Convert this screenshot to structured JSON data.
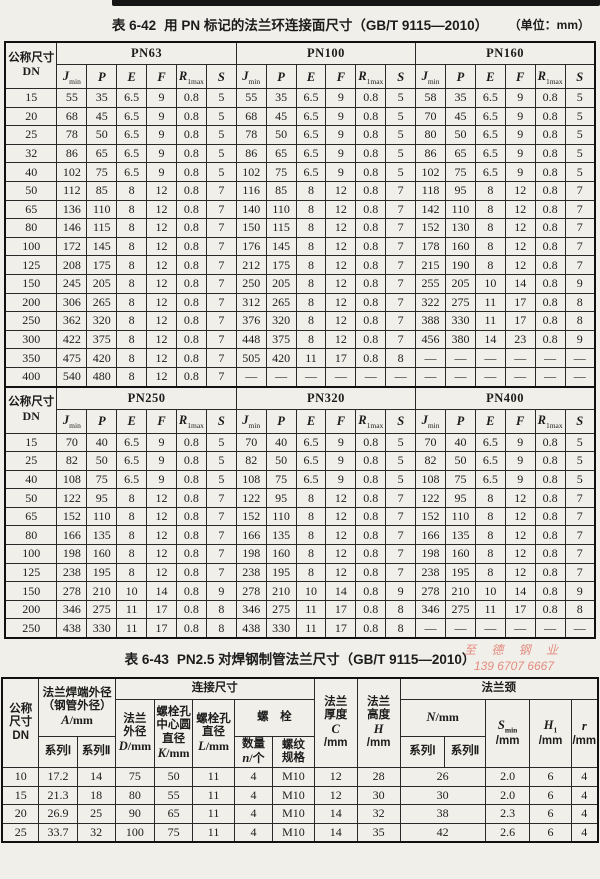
{
  "colors": {
    "paper": "#f1efe9",
    "ink": "#1c1c1c",
    "watermark": "#e07a6c"
  },
  "watermark": {
    "line1": "至 德 钢 业",
    "line2": "139 6707 6667"
  },
  "table42": {
    "label": "表 6-42",
    "title": "用 PN 标记的法兰环连接面尺寸（GB/T 9115—2010）",
    "unit": "（单位：mm）",
    "dn_line1": "公称尺寸",
    "dn_line2": "DN",
    "col_headers": [
      {
        "var": "J",
        "sub": "min"
      },
      {
        "var": "P"
      },
      {
        "var": "E"
      },
      {
        "var": "F"
      },
      {
        "var": "R",
        "sub": "1max"
      },
      {
        "var": "S"
      }
    ],
    "halves": [
      {
        "groups": [
          "PN63",
          "PN100",
          "PN160"
        ],
        "rows": [
          {
            "dn": "15",
            "cells": [
              [
                "55",
                "35",
                "6.5",
                "9",
                "0.8",
                "5"
              ],
              [
                "55",
                "35",
                "6.5",
                "9",
                "0.8",
                "5"
              ],
              [
                "58",
                "35",
                "6.5",
                "9",
                "0.8",
                "5"
              ]
            ]
          },
          {
            "dn": "20",
            "cells": [
              [
                "68",
                "45",
                "6.5",
                "9",
                "0.8",
                "5"
              ],
              [
                "68",
                "45",
                "6.5",
                "9",
                "0.8",
                "5"
              ],
              [
                "70",
                "45",
                "6.5",
                "9",
                "0.8",
                "5"
              ]
            ]
          },
          {
            "dn": "25",
            "cells": [
              [
                "78",
                "50",
                "6.5",
                "9",
                "0.8",
                "5"
              ],
              [
                "78",
                "50",
                "6.5",
                "9",
                "0.8",
                "5"
              ],
              [
                "80",
                "50",
                "6.5",
                "9",
                "0.8",
                "5"
              ]
            ]
          },
          {
            "dn": "32",
            "cells": [
              [
                "86",
                "65",
                "6.5",
                "9",
                "0.8",
                "5"
              ],
              [
                "86",
                "65",
                "6.5",
                "9",
                "0.8",
                "5"
              ],
              [
                "86",
                "65",
                "6.5",
                "9",
                "0.8",
                "5"
              ]
            ]
          },
          {
            "dn": "40",
            "cells": [
              [
                "102",
                "75",
                "6.5",
                "9",
                "0.8",
                "5"
              ],
              [
                "102",
                "75",
                "6.5",
                "9",
                "0.8",
                "5"
              ],
              [
                "102",
                "75",
                "6.5",
                "9",
                "0.8",
                "5"
              ]
            ]
          },
          {
            "dn": "50",
            "cells": [
              [
                "112",
                "85",
                "8",
                "12",
                "0.8",
                "7"
              ],
              [
                "116",
                "85",
                "8",
                "12",
                "0.8",
                "7"
              ],
              [
                "118",
                "95",
                "8",
                "12",
                "0.8",
                "7"
              ]
            ]
          },
          {
            "dn": "65",
            "cells": [
              [
                "136",
                "110",
                "8",
                "12",
                "0.8",
                "7"
              ],
              [
                "140",
                "110",
                "8",
                "12",
                "0.8",
                "7"
              ],
              [
                "142",
                "110",
                "8",
                "12",
                "0.8",
                "7"
              ]
            ]
          },
          {
            "dn": "80",
            "cells": [
              [
                "146",
                "115",
                "8",
                "12",
                "0.8",
                "7"
              ],
              [
                "150",
                "115",
                "8",
                "12",
                "0.8",
                "7"
              ],
              [
                "152",
                "130",
                "8",
                "12",
                "0.8",
                "7"
              ]
            ]
          },
          {
            "dn": "100",
            "cells": [
              [
                "172",
                "145",
                "8",
                "12",
                "0.8",
                "7"
              ],
              [
                "176",
                "145",
                "8",
                "12",
                "0.8",
                "7"
              ],
              [
                "178",
                "160",
                "8",
                "12",
                "0.8",
                "7"
              ]
            ]
          },
          {
            "dn": "125",
            "cells": [
              [
                "208",
                "175",
                "8",
                "12",
                "0.8",
                "7"
              ],
              [
                "212",
                "175",
                "8",
                "12",
                "0.8",
                "7"
              ],
              [
                "215",
                "190",
                "8",
                "12",
                "0.8",
                "7"
              ]
            ]
          },
          {
            "dn": "150",
            "cells": [
              [
                "245",
                "205",
                "8",
                "12",
                "0.8",
                "7"
              ],
              [
                "250",
                "205",
                "8",
                "12",
                "0.8",
                "7"
              ],
              [
                "255",
                "205",
                "10",
                "14",
                "0.8",
                "9"
              ]
            ]
          },
          {
            "dn": "200",
            "cells": [
              [
                "306",
                "265",
                "8",
                "12",
                "0.8",
                "7"
              ],
              [
                "312",
                "265",
                "8",
                "12",
                "0.8",
                "7"
              ],
              [
                "322",
                "275",
                "11",
                "17",
                "0.8",
                "8"
              ]
            ]
          },
          {
            "dn": "250",
            "cells": [
              [
                "362",
                "320",
                "8",
                "12",
                "0.8",
                "7"
              ],
              [
                "376",
                "320",
                "8",
                "12",
                "0.8",
                "7"
              ],
              [
                "388",
                "330",
                "11",
                "17",
                "0.8",
                "8"
              ]
            ]
          },
          {
            "dn": "300",
            "cells": [
              [
                "422",
                "375",
                "8",
                "12",
                "0.8",
                "7"
              ],
              [
                "448",
                "375",
                "8",
                "12",
                "0.8",
                "7"
              ],
              [
                "456",
                "380",
                "14",
                "23",
                "0.8",
                "9"
              ]
            ]
          },
          {
            "dn": "350",
            "cells": [
              [
                "475",
                "420",
                "8",
                "12",
                "0.8",
                "7"
              ],
              [
                "505",
                "420",
                "11",
                "17",
                "0.8",
                "8"
              ],
              [
                "—",
                "—",
                "—",
                "—",
                "—",
                "—"
              ]
            ]
          },
          {
            "dn": "400",
            "cells": [
              [
                "540",
                "480",
                "8",
                "12",
                "0.8",
                "7"
              ],
              [
                "—",
                "—",
                "—",
                "—",
                "—",
                "—"
              ],
              [
                "—",
                "—",
                "—",
                "—",
                "—",
                "—"
              ]
            ]
          }
        ]
      },
      {
        "groups": [
          "PN250",
          "PN320",
          "PN400"
        ],
        "rows": [
          {
            "dn": "15",
            "cells": [
              [
                "70",
                "40",
                "6.5",
                "9",
                "0.8",
                "5"
              ],
              [
                "70",
                "40",
                "6.5",
                "9",
                "0.8",
                "5"
              ],
              [
                "70",
                "40",
                "6.5",
                "9",
                "0.8",
                "5"
              ]
            ]
          },
          {
            "dn": "25",
            "cells": [
              [
                "82",
                "50",
                "6.5",
                "9",
                "0.8",
                "5"
              ],
              [
                "82",
                "50",
                "6.5",
                "9",
                "0.8",
                "5"
              ],
              [
                "82",
                "50",
                "6.5",
                "9",
                "0.8",
                "5"
              ]
            ]
          },
          {
            "dn": "40",
            "cells": [
              [
                "108",
                "75",
                "6.5",
                "9",
                "0.8",
                "5"
              ],
              [
                "108",
                "75",
                "6.5",
                "9",
                "0.8",
                "5"
              ],
              [
                "108",
                "75",
                "6.5",
                "9",
                "0.8",
                "5"
              ]
            ]
          },
          {
            "dn": "50",
            "cells": [
              [
                "122",
                "95",
                "8",
                "12",
                "0.8",
                "7"
              ],
              [
                "122",
                "95",
                "8",
                "12",
                "0.8",
                "7"
              ],
              [
                "122",
                "95",
                "8",
                "12",
                "0.8",
                "7"
              ]
            ]
          },
          {
            "dn": "65",
            "cells": [
              [
                "152",
                "110",
                "8",
                "12",
                "0.8",
                "7"
              ],
              [
                "152",
                "110",
                "8",
                "12",
                "0.8",
                "7"
              ],
              [
                "152",
                "110",
                "8",
                "12",
                "0.8",
                "7"
              ]
            ]
          },
          {
            "dn": "80",
            "cells": [
              [
                "166",
                "135",
                "8",
                "12",
                "0.8",
                "7"
              ],
              [
                "166",
                "135",
                "8",
                "12",
                "0.8",
                "7"
              ],
              [
                "166",
                "135",
                "8",
                "12",
                "0.8",
                "7"
              ]
            ]
          },
          {
            "dn": "100",
            "cells": [
              [
                "198",
                "160",
                "8",
                "12",
                "0.8",
                "7"
              ],
              [
                "198",
                "160",
                "8",
                "12",
                "0.8",
                "7"
              ],
              [
                "198",
                "160",
                "8",
                "12",
                "0.8",
                "7"
              ]
            ]
          },
          {
            "dn": "125",
            "cells": [
              [
                "238",
                "195",
                "8",
                "12",
                "0.8",
                "7"
              ],
              [
                "238",
                "195",
                "8",
                "12",
                "0.8",
                "7"
              ],
              [
                "238",
                "195",
                "8",
                "12",
                "0.8",
                "7"
              ]
            ]
          },
          {
            "dn": "150",
            "cells": [
              [
                "278",
                "210",
                "10",
                "14",
                "0.8",
                "9"
              ],
              [
                "278",
                "210",
                "10",
                "14",
                "0.8",
                "9"
              ],
              [
                "278",
                "210",
                "10",
                "14",
                "0.8",
                "9"
              ]
            ]
          },
          {
            "dn": "200",
            "cells": [
              [
                "346",
                "275",
                "11",
                "17",
                "0.8",
                "8"
              ],
              [
                "346",
                "275",
                "11",
                "17",
                "0.8",
                "8"
              ],
              [
                "346",
                "275",
                "11",
                "17",
                "0.8",
                "8"
              ]
            ]
          },
          {
            "dn": "250",
            "cells": [
              [
                "438",
                "330",
                "11",
                "17",
                "0.8",
                "8"
              ],
              [
                "438",
                "330",
                "11",
                "17",
                "0.8",
                "8"
              ],
              [
                "—",
                "—",
                "—",
                "—",
                "—",
                "—"
              ]
            ]
          }
        ]
      }
    ]
  },
  "table43": {
    "label": "表 6-43",
    "title": "PN2.5 对焊钢制管法兰尺寸（GB/T 9115—2010）",
    "headers": {
      "dn": [
        "公称",
        "尺寸",
        "DN"
      ],
      "a_group": [
        "法兰焊端外径",
        "（钢管外径）",
        {
          "var": "A",
          "suffix": "/mm"
        }
      ],
      "series1": "系列Ⅰ",
      "series2": "系列Ⅱ",
      "connect": "连接尺寸",
      "d": [
        "法兰",
        "外径",
        {
          "var": "D",
          "suffix": "/mm"
        }
      ],
      "k": [
        "螺栓孔",
        "中心圆",
        "直径",
        {
          "var": "K",
          "suffix": "/mm"
        }
      ],
      "l": [
        "螺栓孔",
        "直径",
        {
          "var": "L",
          "suffix": "/mm"
        }
      ],
      "bolt": "螺　栓",
      "qty": [
        "数量",
        {
          "var": "n",
          "suffix": "/个"
        }
      ],
      "thread": [
        "螺纹",
        "规格"
      ],
      "c": [
        "法兰",
        "厚度",
        {
          "var": "C"
        },
        "/mm"
      ],
      "h": [
        "法兰",
        "高度",
        {
          "var": "H"
        },
        "/mm"
      ],
      "neck": "法兰颈",
      "n": [
        {
          "var": "N",
          "suffix": "/mm"
        }
      ],
      "smin": [
        {
          "var": "S",
          "sub": "min"
        },
        "/mm"
      ],
      "h1": [
        {
          "var": "H",
          "sub": "1"
        },
        "/mm"
      ],
      "r": [
        {
          "var": "r"
        },
        "/mm"
      ]
    },
    "rows": [
      [
        "10",
        "17.2",
        "14",
        "75",
        "50",
        "11",
        "4",
        "M10",
        "12",
        "28",
        "26",
        "2.0",
        "6",
        "4"
      ],
      [
        "15",
        "21.3",
        "18",
        "80",
        "55",
        "11",
        "4",
        "M10",
        "12",
        "30",
        "30",
        "2.0",
        "6",
        "4"
      ],
      [
        "20",
        "26.9",
        "25",
        "90",
        "65",
        "11",
        "4",
        "M10",
        "14",
        "32",
        "38",
        "2.3",
        "6",
        "4"
      ],
      [
        "25",
        "33.7",
        "32",
        "100",
        "75",
        "11",
        "4",
        "M10",
        "14",
        "35",
        "42",
        "2.6",
        "6",
        "4"
      ]
    ]
  }
}
